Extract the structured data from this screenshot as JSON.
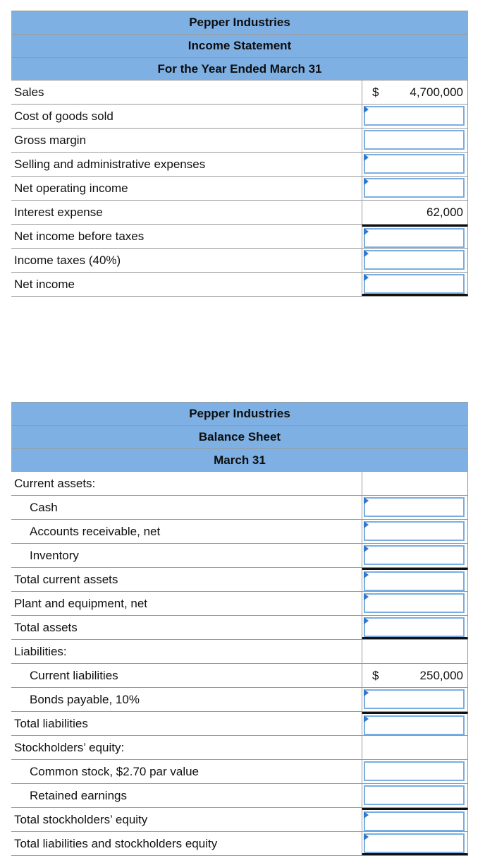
{
  "income_statement": {
    "header": [
      "Pepper Industries",
      "Income Statement",
      "For the Year Ended March 31"
    ],
    "rows": [
      {
        "label": "Sales",
        "currency": "$",
        "value": "4,700,000"
      },
      {
        "label": "Cost of goods sold",
        "value": ""
      },
      {
        "label": "Gross margin",
        "value": ""
      },
      {
        "label": "Selling and administrative expenses",
        "value": ""
      },
      {
        "label": "Net operating income",
        "value": ""
      },
      {
        "label": "Interest expense",
        "value": "62,000"
      },
      {
        "label": "Net income before taxes",
        "value": ""
      },
      {
        "label": "Income taxes (40%)",
        "value": ""
      },
      {
        "label": "Net income",
        "value": ""
      }
    ]
  },
  "balance_sheet": {
    "header": [
      "Pepper Industries",
      "Balance Sheet",
      "March 31"
    ],
    "rows": [
      {
        "label": "Current assets:"
      },
      {
        "label": "Cash",
        "value": ""
      },
      {
        "label": "Accounts receivable, net",
        "value": ""
      },
      {
        "label": "Inventory",
        "value": ""
      },
      {
        "label": "Total current assets",
        "value": ""
      },
      {
        "label": "Plant and equipment, net",
        "value": ""
      },
      {
        "label": "Total assets",
        "value": ""
      },
      {
        "label": "Liabilities:"
      },
      {
        "label": "Current liabilities",
        "currency": "$",
        "value": "250,000"
      },
      {
        "label": "Bonds payable, 10%",
        "value": ""
      },
      {
        "label": "Total liabilities",
        "value": ""
      },
      {
        "label": "Stockholders’ equity:"
      },
      {
        "label": "Common stock, $2.70 par value",
        "value": ""
      },
      {
        "label": "Retained earnings",
        "value": ""
      },
      {
        "label": "Total stockholders’ equity",
        "value": ""
      },
      {
        "label": "Total liabilities and stockholders equity",
        "value": ""
      }
    ]
  }
}
